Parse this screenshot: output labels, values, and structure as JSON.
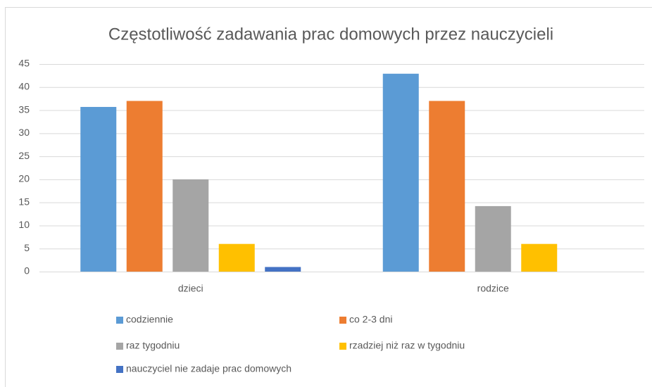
{
  "chart_data": {
    "type": "bar",
    "title": "Częstotliwość zadawania prac domowych przez nauczycieli",
    "categories": [
      "dzieci",
      "rodzice"
    ],
    "series": [
      {
        "name": "codziennie",
        "color": "#5b9bd5",
        "values": [
          35.7,
          42.9
        ]
      },
      {
        "name": "co 2-3 dni",
        "color": "#ed7d31",
        "values": [
          37,
          37
        ]
      },
      {
        "name": "raz tygodniu",
        "color": "#a5a5a5",
        "values": [
          20,
          14.2
        ]
      },
      {
        "name": "rzadziej niż raz w tygodniu",
        "color": "#ffc000",
        "values": [
          6,
          6
        ]
      },
      {
        "name": "nauczyciel nie zadaje prac domowych",
        "color": "#4472c4",
        "values": [
          1,
          0
        ]
      }
    ],
    "ylim": [
      0,
      45
    ],
    "yticks": [
      0,
      5,
      10,
      15,
      20,
      25,
      30,
      35,
      40,
      45
    ],
    "grid": true,
    "legend": "bottom"
  }
}
